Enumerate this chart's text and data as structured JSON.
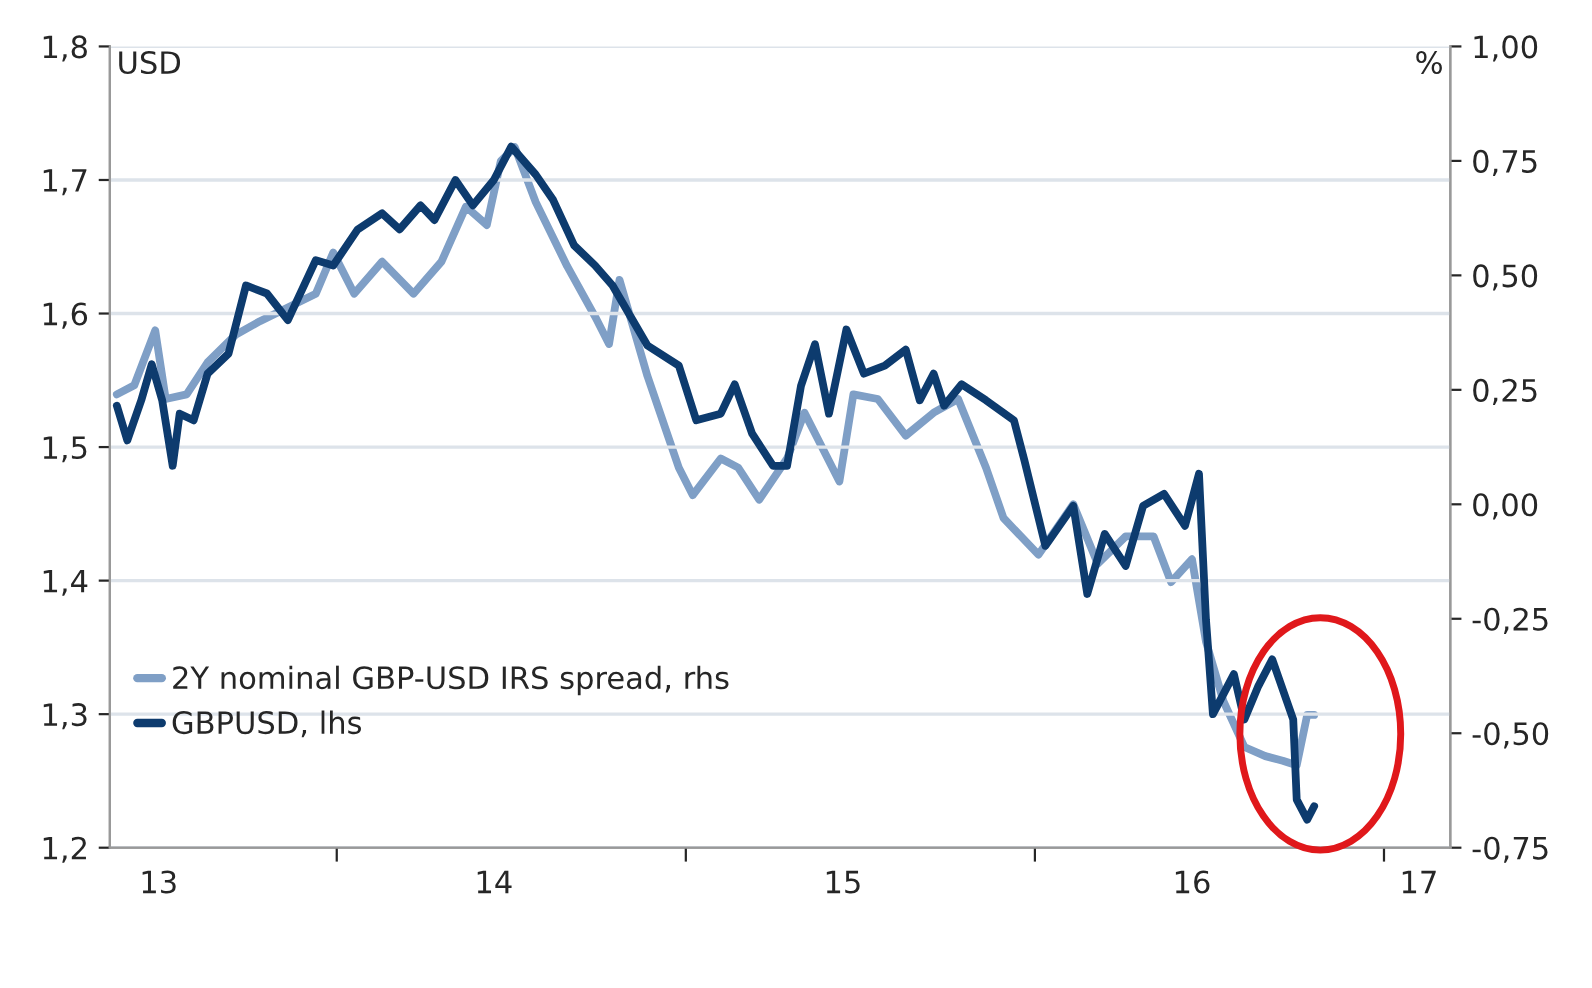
{
  "chart_data": {
    "type": "line",
    "ylabel": "USD",
    "y2label": "%",
    "xlim": [
      13.35,
      17.19
    ],
    "xticks": [
      {
        "value": 14,
        "label": null
      },
      {
        "value": 15,
        "label": null
      },
      {
        "value": 16,
        "label": null
      },
      {
        "value": 17,
        "label": null
      },
      {
        "value": 13.49,
        "label": "13"
      },
      {
        "value": 14.45,
        "label": "14"
      },
      {
        "value": 15.45,
        "label": "15"
      },
      {
        "value": 16.45,
        "label": "16"
      },
      {
        "value": 17.1,
        "label": "17"
      }
    ],
    "ylim": [
      1.2,
      1.8
    ],
    "yticks": [
      {
        "value": 1.2,
        "label": "1,2"
      },
      {
        "value": 1.3,
        "label": "1,3"
      },
      {
        "value": 1.4,
        "label": "1,4"
      },
      {
        "value": 1.5,
        "label": "1,5"
      },
      {
        "value": 1.6,
        "label": "1,6"
      },
      {
        "value": 1.7,
        "label": "1,7"
      },
      {
        "value": 1.8,
        "label": "1,8"
      }
    ],
    "y2lim": [
      -0.75,
      1.0
    ],
    "y2ticks": [
      {
        "value": -0.75,
        "label": "-0,75"
      },
      {
        "value": -0.5,
        "label": "-0,50"
      },
      {
        "value": -0.25,
        "label": "-0,25"
      },
      {
        "value": 0.0,
        "label": "0,00"
      },
      {
        "value": 0.25,
        "label": "0,25"
      },
      {
        "value": 0.5,
        "label": "0,50"
      },
      {
        "value": 0.75,
        "label": "0,75"
      },
      {
        "value": 1.0,
        "label": "1,00"
      }
    ],
    "grid": "y",
    "legend": "bottom left",
    "line_style": "solid",
    "marker": "none",
    "series": [
      {
        "name": "2Y nominal GBP-USD IRS spread, rhs",
        "color": "#7f9fc6",
        "axis": "y2",
        "x": [
          13.37,
          13.42,
          13.48,
          13.51,
          13.57,
          13.63,
          13.71,
          13.78,
          13.86,
          13.94,
          13.99,
          14.05,
          14.13,
          14.22,
          14.3,
          14.37,
          14.43,
          14.47,
          14.51,
          14.57,
          14.66,
          14.74,
          14.78,
          14.81,
          14.89,
          14.98,
          15.02,
          15.1,
          15.15,
          15.21,
          15.29,
          15.34,
          15.44,
          15.48,
          15.55,
          15.63,
          15.71,
          15.78,
          15.86,
          15.91,
          16.01,
          16.11,
          16.18,
          16.26,
          16.34,
          16.39,
          16.45,
          16.49,
          16.54,
          16.6,
          16.66,
          16.71,
          16.75,
          16.78,
          16.8
        ],
        "values": [
          0.24,
          0.26,
          0.38,
          0.23,
          0.24,
          0.31,
          0.37,
          0.4,
          0.43,
          0.46,
          0.55,
          0.46,
          0.53,
          0.46,
          0.53,
          0.65,
          0.61,
          0.75,
          0.78,
          0.66,
          0.52,
          0.41,
          0.35,
          0.49,
          0.28,
          0.08,
          0.02,
          0.1,
          0.08,
          0.01,
          0.1,
          0.2,
          0.05,
          0.24,
          0.23,
          0.15,
          0.2,
          0.23,
          0.08,
          -0.03,
          -0.11,
          0.0,
          -0.13,
          -0.07,
          -0.07,
          -0.17,
          -0.12,
          -0.3,
          -0.43,
          -0.53,
          -0.55,
          -0.56,
          -0.57,
          -0.46,
          -0.46
        ]
      },
      {
        "name": "GBPUSD, lhs",
        "color": "#0d3b6e",
        "x": [
          13.37,
          13.4,
          13.44,
          13.47,
          13.5,
          13.53,
          13.55,
          13.59,
          13.63,
          13.69,
          13.74,
          13.8,
          13.86,
          13.94,
          13.99,
          14.06,
          14.13,
          14.18,
          14.24,
          14.28,
          14.34,
          14.39,
          14.45,
          14.5,
          14.57,
          14.62,
          14.68,
          14.74,
          14.79,
          14.89,
          14.98,
          15.03,
          15.1,
          15.14,
          15.19,
          15.25,
          15.29,
          15.33,
          15.37,
          15.41,
          15.46,
          15.51,
          15.57,
          15.63,
          15.67,
          15.71,
          15.74,
          15.79,
          15.86,
          15.94,
          15.97,
          16.03,
          16.11,
          16.15,
          16.2,
          16.26,
          16.31,
          16.37,
          16.43,
          16.47,
          16.49,
          16.51,
          16.57,
          16.6,
          16.64,
          16.68,
          16.74,
          16.75,
          16.78,
          16.8
        ],
        "values": [
          1.531,
          1.505,
          1.535,
          1.562,
          1.535,
          1.486,
          1.525,
          1.52,
          1.555,
          1.57,
          1.621,
          1.615,
          1.595,
          1.64,
          1.636,
          1.663,
          1.675,
          1.663,
          1.681,
          1.67,
          1.7,
          1.681,
          1.7,
          1.725,
          1.704,
          1.685,
          1.651,
          1.636,
          1.621,
          1.576,
          1.561,
          1.52,
          1.525,
          1.547,
          1.51,
          1.486,
          1.486,
          1.546,
          1.577,
          1.525,
          1.588,
          1.555,
          1.561,
          1.573,
          1.535,
          1.555,
          1.531,
          1.547,
          1.535,
          1.52,
          1.49,
          1.426,
          1.456,
          1.39,
          1.435,
          1.411,
          1.456,
          1.465,
          1.441,
          1.48,
          1.371,
          1.3,
          1.33,
          1.296,
          1.321,
          1.341,
          1.296,
          1.236,
          1.221,
          1.231
        ]
      }
    ]
  }
}
